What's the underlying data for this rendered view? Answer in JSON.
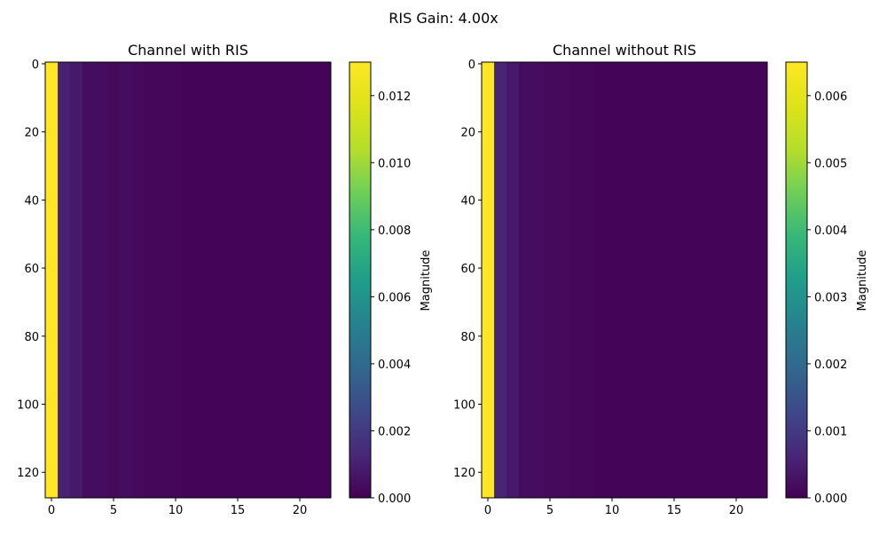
{
  "figure": {
    "suptitle": "RIS Gain: 4.00x"
  },
  "chart_data": [
    {
      "type": "heatmap",
      "title": "Channel with RIS",
      "xlabel": "",
      "ylabel": "",
      "x_range": [
        -0.5,
        22.5
      ],
      "y_range": [
        127.5,
        -0.5
      ],
      "x_ticks": [
        0,
        5,
        10,
        15,
        20
      ],
      "y_ticks": [
        0,
        20,
        40,
        60,
        80,
        100,
        120
      ],
      "colormap": "viridis",
      "colorbar": {
        "label": "Magnitude",
        "vmin": 0.0,
        "vmax": 0.013,
        "ticks": [
          0.0,
          0.002,
          0.004,
          0.006,
          0.008,
          0.01,
          0.012
        ],
        "tick_labels": [
          "0.000",
          "0.002",
          "0.004",
          "0.006",
          "0.008",
          "0.010",
          "0.012"
        ]
      },
      "n_rows": 128,
      "columns": [
        {
          "col": 0,
          "value": 0.013
        },
        {
          "col": 1,
          "value": 0.0011
        },
        {
          "col": 2,
          "value": 0.0008
        },
        {
          "col": 3,
          "value": 0.0004
        },
        {
          "col": 4,
          "value": 0.0004
        },
        {
          "col": 5,
          "value": 0.0003
        },
        {
          "col": 6,
          "value": 0.0004
        },
        {
          "col": 7,
          "value": 0.0003
        },
        {
          "col": 8,
          "value": 0.0002
        },
        {
          "col": 9,
          "value": 0.0002
        },
        {
          "col": 10,
          "value": 0.0002
        },
        {
          "col": 11,
          "value": 0.0001
        },
        {
          "col": 12,
          "value": 0.0001
        },
        {
          "col": 13,
          "value": 0.0001
        },
        {
          "col": 14,
          "value": 0.0001
        },
        {
          "col": 15,
          "value": 0.0001
        },
        {
          "col": 16,
          "value": 0.0001
        },
        {
          "col": 17,
          "value": 0.0001
        },
        {
          "col": 18,
          "value": 0.0001
        },
        {
          "col": 19,
          "value": 0.0001
        },
        {
          "col": 20,
          "value": 0.0001
        },
        {
          "col": 21,
          "value": 0.0001
        },
        {
          "col": 22,
          "value": 0.0001
        }
      ]
    },
    {
      "type": "heatmap",
      "title": "Channel without RIS",
      "xlabel": "",
      "ylabel": "",
      "x_range": [
        -0.5,
        22.5
      ],
      "y_range": [
        127.5,
        -0.5
      ],
      "x_ticks": [
        0,
        5,
        10,
        15,
        20
      ],
      "y_ticks": [
        0,
        20,
        40,
        60,
        80,
        100,
        120
      ],
      "colormap": "viridis",
      "colorbar": {
        "label": "Magnitude",
        "vmin": 0.0,
        "vmax": 0.0065,
        "ticks": [
          0.0,
          0.001,
          0.002,
          0.003,
          0.004,
          0.005,
          0.006
        ],
        "tick_labels": [
          "0.000",
          "0.001",
          "0.002",
          "0.003",
          "0.004",
          "0.005",
          "0.006"
        ]
      },
      "n_rows": 128,
      "columns": [
        {
          "col": 0,
          "value": 0.0065
        },
        {
          "col": 1,
          "value": 0.0006
        },
        {
          "col": 2,
          "value": 0.0004
        },
        {
          "col": 3,
          "value": 0.0002
        },
        {
          "col": 4,
          "value": 0.0002
        },
        {
          "col": 5,
          "value": 0.00015
        },
        {
          "col": 6,
          "value": 0.00015
        },
        {
          "col": 7,
          "value": 0.0001
        },
        {
          "col": 8,
          "value": 0.0001
        },
        {
          "col": 9,
          "value": 5e-05
        },
        {
          "col": 10,
          "value": 5e-05
        },
        {
          "col": 11,
          "value": 5e-05
        },
        {
          "col": 12,
          "value": 5e-05
        },
        {
          "col": 13,
          "value": 5e-05
        },
        {
          "col": 14,
          "value": 5e-05
        },
        {
          "col": 15,
          "value": 5e-05
        },
        {
          "col": 16,
          "value": 5e-05
        },
        {
          "col": 17,
          "value": 5e-05
        },
        {
          "col": 18,
          "value": 5e-05
        },
        {
          "col": 19,
          "value": 5e-05
        },
        {
          "col": 20,
          "value": 5e-05
        },
        {
          "col": 21,
          "value": 5e-05
        },
        {
          "col": 22,
          "value": 5e-05
        }
      ]
    }
  ]
}
